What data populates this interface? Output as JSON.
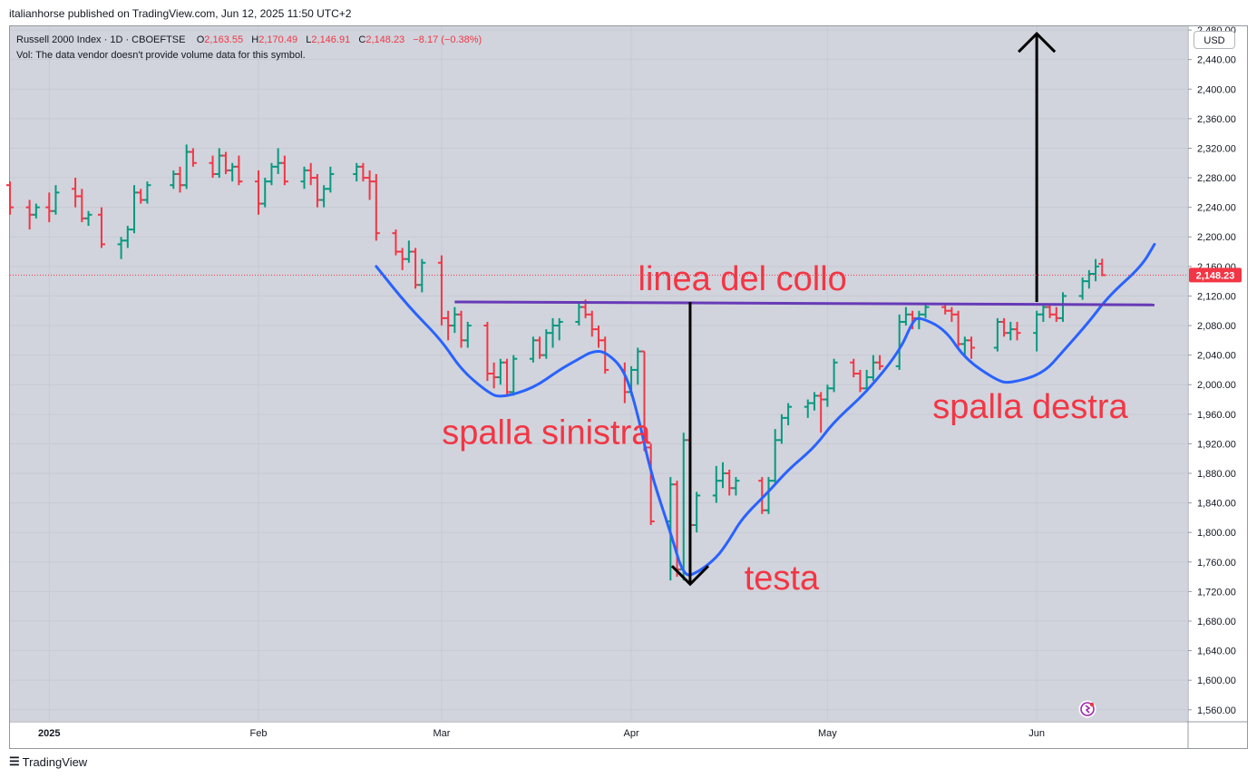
{
  "header": {
    "publisher": "italianhorse published on TradingView.com, Jun 12, 2025 11:50 UTC+2"
  },
  "legend": {
    "symbol": "Russell 2000 Index · 1D · CBOEFTSE",
    "o_label": "O",
    "o_value": "2,163.55",
    "h_label": "H",
    "h_value": "2,170.49",
    "l_label": "L",
    "l_value": "2,146.91",
    "c_label": "C",
    "c_value": "2,148.23",
    "change": "−8.17 (−0.38%)",
    "volume_note": "Vol: The data vendor doesn't provide volume data for this symbol."
  },
  "toolbar": {
    "currency": "USD"
  },
  "footer": {
    "brand": "TradingView"
  },
  "colors": {
    "background": "#d1d4dc",
    "up": "#089981",
    "down": "#f23645",
    "ma_line": "#2962ff",
    "neckline": "#673ab7",
    "annotation": "#f23645",
    "arrow": "#000000"
  },
  "chart_data": {
    "type": "ohlc",
    "title": "Russell 2000 Index · 1D · CBOEFTSE",
    "currency": "USD",
    "scale": "linear",
    "grid": true,
    "last_price": 2148.23,
    "ylim": [
      1545,
      2485
    ],
    "y_ticks": [
      1560,
      1600,
      1640,
      1680,
      1720,
      1760,
      1800,
      1840,
      1880,
      1920,
      1960,
      2000,
      2040,
      2080,
      2120,
      2160,
      2200,
      2240,
      2280,
      2320,
      2360,
      2400,
      2440,
      2480
    ],
    "y_tick_labels": [
      "1,560.00",
      "1,600.00",
      "1,640.00",
      "1,680.00",
      "1,720.00",
      "1,760.00",
      "1,800.00",
      "1,840.00",
      "1,880.00",
      "1,920.00",
      "1,960.00",
      "2,000.00",
      "2,040.00",
      "2,080.00",
      "2,120.00",
      "2,160.00",
      "2,200.00",
      "2,240.00",
      "2,280.00",
      "2,320.00",
      "2,360.00",
      "2,400.00",
      "2,440.00",
      "2,480.00"
    ],
    "x_ticks": [
      {
        "label": "2025",
        "date": "2025-01-02"
      },
      {
        "label": "Feb",
        "date": "2025-02-03"
      },
      {
        "label": "Mar",
        "date": "2025-03-03"
      },
      {
        "label": "Apr",
        "date": "2025-04-01"
      },
      {
        "label": "May",
        "date": "2025-05-01"
      },
      {
        "label": "Jun",
        "date": "2025-06-02"
      }
    ],
    "bars": [
      [
        "2024-12-27",
        2270,
        2275,
        2230,
        2240
      ],
      [
        "2024-12-30",
        2240,
        2250,
        2210,
        2230
      ],
      [
        "2024-12-31",
        2230,
        2245,
        2225,
        2240
      ],
      [
        "2025-01-02",
        2240,
        2260,
        2220,
        2235
      ],
      [
        "2025-01-03",
        2235,
        2270,
        2230,
        2260
      ],
      [
        "2025-01-06",
        2265,
        2280,
        2240,
        2255
      ],
      [
        "2025-01-07",
        2255,
        2265,
        2220,
        2225
      ],
      [
        "2025-01-08",
        2225,
        2235,
        2215,
        2230
      ],
      [
        "2025-01-10",
        2230,
        2240,
        2185,
        2190
      ],
      [
        "2025-01-13",
        2190,
        2200,
        2170,
        2195
      ],
      [
        "2025-01-14",
        2195,
        2215,
        2185,
        2210
      ],
      [
        "2025-01-15",
        2210,
        2270,
        2205,
        2260
      ],
      [
        "2025-01-16",
        2260,
        2265,
        2245,
        2250
      ],
      [
        "2025-01-17",
        2250,
        2275,
        2245,
        2270
      ],
      [
        "2025-01-21",
        2270,
        2290,
        2265,
        2285
      ],
      [
        "2025-01-22",
        2285,
        2295,
        2260,
        2270
      ],
      [
        "2025-01-23",
        2270,
        2325,
        2265,
        2315
      ],
      [
        "2025-01-24",
        2315,
        2320,
        2295,
        2300
      ],
      [
        "2025-01-27",
        2300,
        2310,
        2280,
        2285
      ],
      [
        "2025-01-28",
        2285,
        2320,
        2280,
        2310
      ],
      [
        "2025-01-29",
        2310,
        2315,
        2285,
        2290
      ],
      [
        "2025-01-30",
        2290,
        2300,
        2275,
        2295
      ],
      [
        "2025-01-31",
        2295,
        2310,
        2270,
        2275
      ],
      [
        "2025-02-03",
        2275,
        2290,
        2230,
        2245
      ],
      [
        "2025-02-04",
        2245,
        2280,
        2240,
        2275
      ],
      [
        "2025-02-05",
        2275,
        2300,
        2270,
        2295
      ],
      [
        "2025-02-06",
        2295,
        2320,
        2285,
        2300
      ],
      [
        "2025-02-07",
        2300,
        2310,
        2270,
        2275
      ],
      [
        "2025-02-10",
        2275,
        2295,
        2265,
        2290
      ],
      [
        "2025-02-11",
        2290,
        2300,
        2270,
        2280
      ],
      [
        "2025-02-12",
        2280,
        2285,
        2240,
        2250
      ],
      [
        "2025-02-13",
        2250,
        2270,
        2240,
        2265
      ],
      [
        "2025-02-14",
        2265,
        2295,
        2260,
        2285
      ],
      [
        "2025-02-18",
        2285,
        2300,
        2275,
        2295
      ],
      [
        "2025-02-19",
        2295,
        2300,
        2275,
        2280
      ],
      [
        "2025-02-20",
        2280,
        2290,
        2250,
        2275
      ],
      [
        "2025-02-21",
        2275,
        2285,
        2195,
        2205
      ],
      [
        "2025-02-24",
        2205,
        2210,
        2175,
        2180
      ],
      [
        "2025-02-25",
        2180,
        2185,
        2155,
        2170
      ],
      [
        "2025-02-26",
        2170,
        2195,
        2165,
        2180
      ],
      [
        "2025-02-27",
        2180,
        2185,
        2130,
        2135
      ],
      [
        "2025-02-28",
        2135,
        2170,
        2125,
        2165
      ],
      [
        "2025-03-03",
        2165,
        2175,
        2080,
        2090
      ],
      [
        "2025-03-04",
        2090,
        2100,
        2060,
        2080
      ],
      [
        "2025-03-05",
        2080,
        2105,
        2070,
        2095
      ],
      [
        "2025-03-06",
        2095,
        2100,
        2050,
        2060
      ],
      [
        "2025-03-07",
        2060,
        2085,
        2050,
        2080
      ],
      [
        "2025-03-10",
        2080,
        2085,
        2005,
        2015
      ],
      [
        "2025-03-11",
        2015,
        2030,
        1995,
        2010
      ],
      [
        "2025-03-12",
        2010,
        2035,
        2000,
        2030
      ],
      [
        "2025-03-13",
        2030,
        2035,
        1985,
        1990
      ],
      [
        "2025-03-14",
        1990,
        2040,
        1985,
        2035
      ],
      [
        "2025-03-17",
        2035,
        2065,
        2030,
        2060
      ],
      [
        "2025-03-18",
        2060,
        2065,
        2035,
        2040
      ],
      [
        "2025-03-19",
        2040,
        2075,
        2035,
        2070
      ],
      [
        "2025-03-20",
        2070,
        2090,
        2050,
        2080
      ],
      [
        "2025-03-21",
        2080,
        2090,
        2060,
        2085
      ],
      [
        "2025-03-24",
        2085,
        2110,
        2080,
        2105
      ],
      [
        "2025-03-25",
        2105,
        2115,
        2090,
        2095
      ],
      [
        "2025-03-26",
        2095,
        2100,
        2065,
        2075
      ],
      [
        "2025-03-27",
        2075,
        2080,
        2050,
        2060
      ],
      [
        "2025-03-28",
        2060,
        2065,
        2015,
        2020
      ],
      [
        "2025-03-31",
        2020,
        2030,
        1975,
        1990
      ],
      [
        "2025-04-01",
        1990,
        2025,
        1985,
        2020
      ],
      [
        "2025-04-02",
        2020,
        2050,
        2000,
        2045
      ],
      [
        "2025-04-03",
        2045,
        2045,
        1910,
        1915
      ],
      [
        "2025-04-04",
        1915,
        1920,
        1810,
        1815
      ],
      [
        "2025-04-07",
        1815,
        1875,
        1735,
        1865
      ],
      [
        "2025-04-08",
        1865,
        1870,
        1740,
        1750
      ],
      [
        "2025-04-09",
        1750,
        1935,
        1735,
        1925
      ],
      [
        "2025-04-10",
        1925,
        1930,
        1795,
        1810
      ],
      [
        "2025-04-11",
        1810,
        1855,
        1800,
        1850
      ],
      [
        "2025-04-14",
        1850,
        1890,
        1840,
        1870
      ],
      [
        "2025-04-15",
        1870,
        1895,
        1860,
        1880
      ],
      [
        "2025-04-16",
        1880,
        1885,
        1850,
        1860
      ],
      [
        "2025-04-17",
        1860,
        1875,
        1850,
        1870
      ],
      [
        "2025-04-21",
        1870,
        1875,
        1825,
        1830
      ],
      [
        "2025-04-22",
        1830,
        1875,
        1825,
        1870
      ],
      [
        "2025-04-23",
        1870,
        1940,
        1865,
        1925
      ],
      [
        "2025-04-24",
        1925,
        1960,
        1920,
        1955
      ],
      [
        "2025-04-25",
        1955,
        1975,
        1945,
        1970
      ],
      [
        "2025-04-28",
        1970,
        1980,
        1955,
        1975
      ],
      [
        "2025-04-29",
        1975,
        1990,
        1965,
        1985
      ],
      [
        "2025-04-30",
        1985,
        1990,
        1935,
        1980
      ],
      [
        "2025-05-01",
        1980,
        2000,
        1970,
        1995
      ],
      [
        "2025-05-02",
        1995,
        2035,
        1990,
        2030
      ],
      [
        "2025-05-05",
        2030,
        2035,
        2010,
        2015
      ],
      [
        "2025-05-06",
        2015,
        2020,
        1990,
        1995
      ],
      [
        "2025-05-07",
        1995,
        2020,
        1990,
        2010
      ],
      [
        "2025-05-08",
        2010,
        2040,
        2005,
        2030
      ],
      [
        "2025-05-09",
        2030,
        2040,
        2020,
        2025
      ],
      [
        "2025-05-12",
        2025,
        2095,
        2020,
        2085
      ],
      [
        "2025-05-13",
        2085,
        2105,
        2080,
        2095
      ],
      [
        "2025-05-14",
        2095,
        2100,
        2075,
        2090
      ],
      [
        "2025-05-15",
        2090,
        2100,
        2075,
        2095
      ],
      [
        "2025-05-16",
        2095,
        2110,
        2090,
        2105
      ],
      [
        "2025-05-19",
        2105,
        2110,
        2095,
        2100
      ],
      [
        "2025-05-20",
        2100,
        2105,
        2085,
        2095
      ],
      [
        "2025-05-21",
        2095,
        2100,
        2050,
        2055
      ],
      [
        "2025-05-22",
        2055,
        2065,
        2040,
        2060
      ],
      [
        "2025-05-23",
        2060,
        2065,
        2035,
        2050
      ],
      [
        "2025-05-27",
        2050,
        2090,
        2045,
        2085
      ],
      [
        "2025-05-28",
        2085,
        2090,
        2065,
        2070
      ],
      [
        "2025-05-29",
        2070,
        2085,
        2060,
        2075
      ],
      [
        "2025-05-30",
        2075,
        2085,
        2060,
        2070
      ],
      [
        "2025-06-02",
        2070,
        2100,
        2045,
        2095
      ],
      [
        "2025-06-03",
        2095,
        2110,
        2085,
        2105
      ],
      [
        "2025-06-04",
        2105,
        2110,
        2090,
        2095
      ],
      [
        "2025-06-05",
        2095,
        2105,
        2085,
        2090
      ],
      [
        "2025-06-06",
        2090,
        2125,
        2085,
        2120
      ],
      [
        "2025-06-09",
        2120,
        2145,
        2115,
        2140
      ],
      [
        "2025-06-10",
        2140,
        2155,
        2130,
        2150
      ],
      [
        "2025-06-11",
        2150,
        2170,
        2140,
        2160
      ],
      [
        "2025-06-12",
        2163.55,
        2170.49,
        2146.91,
        2148.23
      ]
    ],
    "moving_average": [
      [
        "2025-02-21",
        2160
      ],
      [
        "2025-02-26",
        2105
      ],
      [
        "2025-03-03",
        2060
      ],
      [
        "2025-03-06",
        2020
      ],
      [
        "2025-03-10",
        1990
      ],
      [
        "2025-03-12",
        1982
      ],
      [
        "2025-03-17",
        1995
      ],
      [
        "2025-03-21",
        2020
      ],
      [
        "2025-03-24",
        2035
      ],
      [
        "2025-03-26",
        2045
      ],
      [
        "2025-03-28",
        2045
      ],
      [
        "2025-03-31",
        2020
      ],
      [
        "2025-04-02",
        1960
      ],
      [
        "2025-04-04",
        1880
      ],
      [
        "2025-04-07",
        1800
      ],
      [
        "2025-04-09",
        1740
      ],
      [
        "2025-04-11",
        1745
      ],
      [
        "2025-04-14",
        1765
      ],
      [
        "2025-04-16",
        1790
      ],
      [
        "2025-04-18",
        1820
      ],
      [
        "2025-04-22",
        1855
      ],
      [
        "2025-04-25",
        1885
      ],
      [
        "2025-04-29",
        1915
      ],
      [
        "2025-05-02",
        1950
      ],
      [
        "2025-05-07",
        1990
      ],
      [
        "2025-05-12",
        2045
      ],
      [
        "2025-05-14",
        2085
      ],
      [
        "2025-05-15",
        2092
      ],
      [
        "2025-05-19",
        2075
      ],
      [
        "2025-05-22",
        2035
      ],
      [
        "2025-05-27",
        2005
      ],
      [
        "2025-05-29",
        2002
      ],
      [
        "2025-06-03",
        2015
      ],
      [
        "2025-06-06",
        2045
      ],
      [
        "2025-06-10",
        2085
      ],
      [
        "2025-06-13",
        2120
      ],
      [
        "2025-06-18",
        2160
      ],
      [
        "2025-06-20",
        2190
      ]
    ],
    "neckline": [
      [
        "2025-03-05",
        2112
      ],
      [
        "2025-06-20",
        2108
      ]
    ],
    "target_arrow": {
      "from": [
        "2025-06-02",
        2112
      ],
      "to": [
        "2025-06-02",
        2475
      ]
    },
    "head_arrow": {
      "from": [
        "2025-04-10",
        2112
      ],
      "to": [
        "2025-04-10",
        1730
      ]
    },
    "annotations": [
      {
        "text": "linea del collo",
        "at": [
          "2025-04-18",
          2128
        ]
      },
      {
        "text": "spalla sinistra",
        "at": [
          "2025-03-19",
          1920
        ]
      },
      {
        "text": "testa",
        "at": [
          "2025-04-24",
          1723
        ]
      },
      {
        "text": "spalla destra",
        "at": [
          "2025-06-01",
          1955
        ]
      }
    ]
  }
}
